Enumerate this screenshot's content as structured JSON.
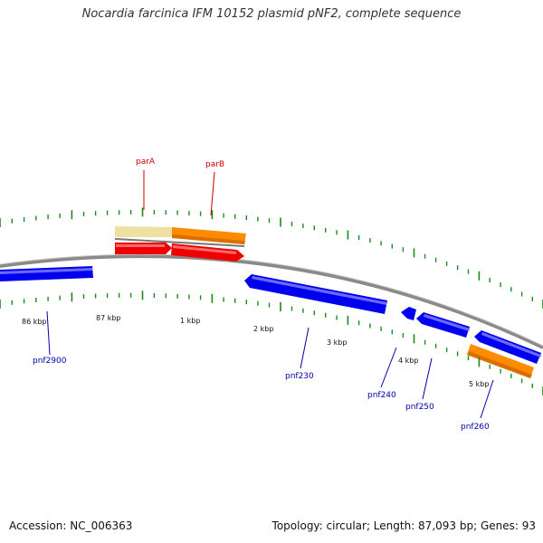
{
  "title": "Nocardia farcinica IFM 10152 plasmid pNF2, complete sequence",
  "footer": {
    "accession": "Accession: NC_006363",
    "summary": "Topology: circular; Length: 87,093 bp; Genes: 93"
  },
  "colors": {
    "backbone": "#888888",
    "tick": "#1a8a1a",
    "forward_gene": "#ff0000",
    "reverse_gene": "#0000ee",
    "label_forward": "#cc0000",
    "label_reverse": "#0000aa",
    "partition_a": "#eee0a0",
    "partition_b": "#ff8800"
  },
  "scale_labels": [
    "86 kbp",
    "87 kbp",
    "1 kbp",
    "2 kbp",
    "3 kbp",
    "4 kbp",
    "5 kbp"
  ],
  "genes_top": [
    {
      "name": "parA",
      "color_key": "label_forward"
    },
    {
      "name": "parB",
      "color_key": "label_forward"
    }
  ],
  "genes_bottom": [
    {
      "name": "pnf2900"
    },
    {
      "name": "pnf230"
    },
    {
      "name": "pnf240"
    },
    {
      "name": "pnf250"
    },
    {
      "name": "pnf260"
    }
  ]
}
